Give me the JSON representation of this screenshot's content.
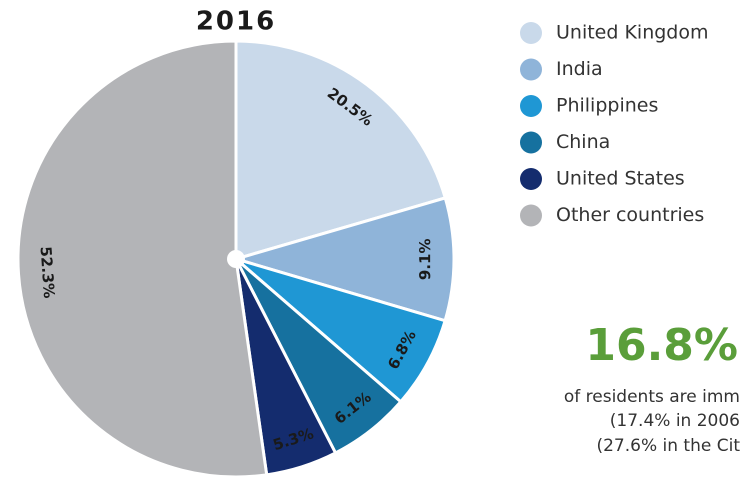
{
  "chart_data": {
    "type": "pie",
    "title": "2016",
    "categories": [
      "United Kingdom",
      "India",
      "Philippines",
      "China",
      "United States",
      "Other countries"
    ],
    "values": [
      20.5,
      9.1,
      6.8,
      6.1,
      5.3,
      52.3
    ],
    "value_labels": [
      "20.5%",
      "9.1%",
      "6.8%",
      "6.1%",
      "5.3%",
      "52.3%"
    ],
    "colors": [
      "#c9d9ea",
      "#8fb4d9",
      "#1f97d4",
      "#16719f",
      "#142c6e",
      "#b3b4b7"
    ],
    "annotations": [
      "16.8%",
      "of residents are imm",
      "(17.4% in 2006",
      "(27.6% in the Cit"
    ]
  }
}
